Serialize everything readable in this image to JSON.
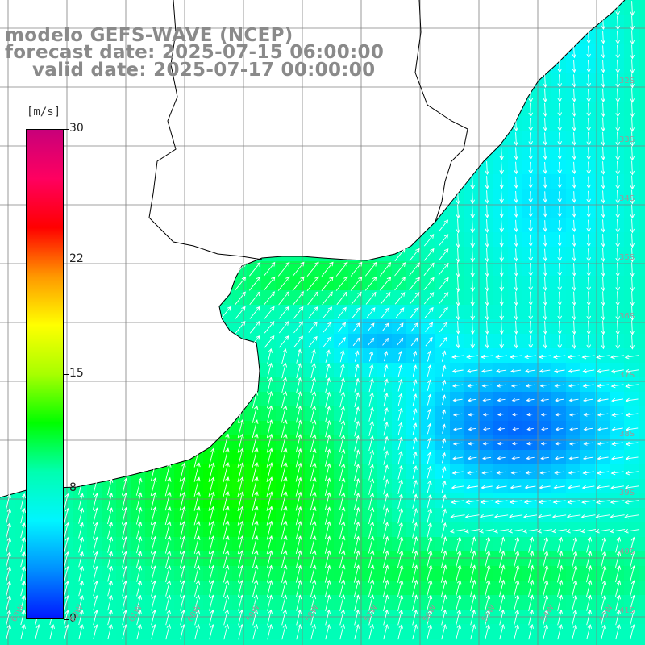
{
  "header": {
    "line1": "modelo GEFS-WAVE (NCEP)",
    "line2": "forecast date: 2025-07-15 06:00:00",
    "line3": "valid date: 2025-07-17 00:00:00"
  },
  "legend": {
    "unit": "[m/s]",
    "ticks": [
      "30",
      "22",
      "15",
      "8",
      "0"
    ],
    "tick_values": [
      30,
      22,
      15,
      8,
      0
    ],
    "range": [
      0,
      30
    ],
    "colormap": [
      "#0018ff",
      "#0090ff",
      "#00f5ff",
      "#00ffb0",
      "#00ff00",
      "#a8ff00",
      "#ffff00",
      "#ff9800",
      "#ff0000",
      "#ff0060",
      "#c8007a"
    ]
  },
  "axes": {
    "lat_labels": [
      "32S",
      "33S",
      "34S",
      "35S",
      "36S",
      "37S",
      "38S",
      "39S",
      "40S",
      "41S"
    ],
    "lon_labels": [
      "63W",
      "62W",
      "61W",
      "60W",
      "59W",
      "58W",
      "57W",
      "56W",
      "55W",
      "54W",
      "53W"
    ],
    "grid": true
  },
  "colors": {
    "coast": "#000000",
    "grid": "#808080",
    "vectors": "#ffffff",
    "land": "#ffffff"
  }
}
